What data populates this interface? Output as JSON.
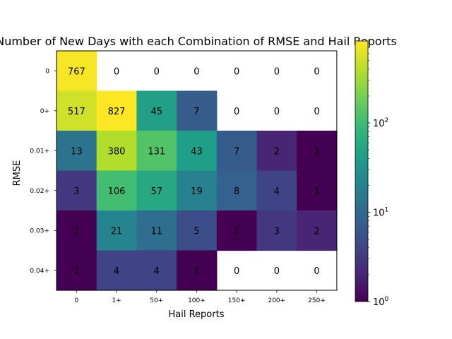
{
  "chart_data": {
    "type": "heatmap",
    "title": "Number of New Days with each Combination of RMSE and Hail Reports",
    "xlabel": "Hail Reports",
    "ylabel": "RMSE",
    "x_categories": [
      "0",
      "1+",
      "50+",
      "100+",
      "150+",
      "200+",
      "250+"
    ],
    "y_categories": [
      "0",
      "0+",
      "0.01+",
      "0.02+",
      "0.03+",
      "0.04+"
    ],
    "values": [
      [
        767,
        0,
        0,
        0,
        0,
        0,
        0
      ],
      [
        517,
        827,
        45,
        7,
        0,
        0,
        0
      ],
      [
        13,
        380,
        131,
        43,
        7,
        2,
        1
      ],
      [
        3,
        106,
        57,
        19,
        8,
        4,
        1
      ],
      [
        1,
        21,
        11,
        5,
        1,
        3,
        2
      ],
      [
        1,
        4,
        4,
        1,
        0,
        0,
        0
      ]
    ],
    "zero_cells": "blank",
    "colorscale": "viridis",
    "color_scale_type": "log",
    "colorbar_range": [
      1,
      827
    ],
    "colorbar_ticks": [
      {
        "value": 1,
        "base": "10",
        "exp": "0"
      },
      {
        "value": 10,
        "base": "10",
        "exp": "1"
      },
      {
        "value": 100,
        "base": "10",
        "exp": "2"
      }
    ]
  }
}
